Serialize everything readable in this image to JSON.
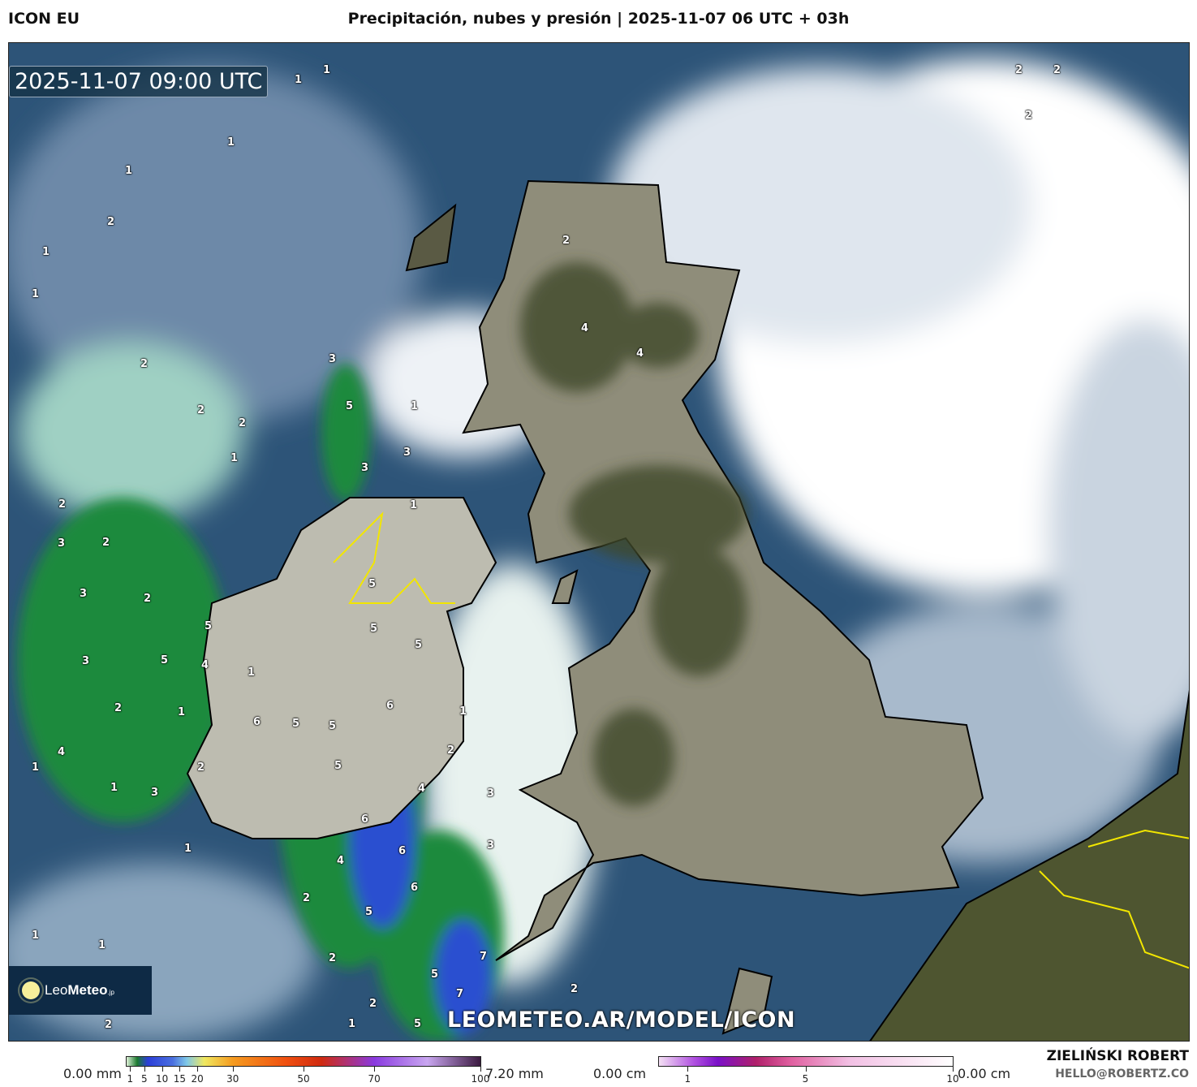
{
  "header": {
    "model": "ICON EU",
    "title": "Precipitación, nubes y presión | 2025-11-07 06 UTC + 03h"
  },
  "map": {
    "valid_time": "2025-11-07 09:00 UTC",
    "logo": {
      "name_light": "Leo",
      "name_bold": "Meteo",
      "suffix": ".jp"
    },
    "watermark": "LEOMETEO.AR/MODEL/ICON",
    "pressure_labels": [
      "1",
      "1",
      "1",
      "1",
      "2",
      "1",
      "1",
      "2",
      "2",
      "2",
      "1",
      "3",
      "5",
      "1",
      "3",
      "3",
      "1",
      "2",
      "2",
      "3",
      "2",
      "4",
      "4",
      "3",
      "2",
      "5",
      "5",
      "4",
      "1",
      "3",
      "1",
      "2",
      "1",
      "2",
      "1",
      "5",
      "5",
      "6",
      "5",
      "5",
      "6",
      "5",
      "4",
      "5",
      "1",
      "6",
      "2",
      "3",
      "1",
      "6",
      "4",
      "6",
      "3",
      "2",
      "1",
      "1",
      "5",
      "2",
      "7",
      "2",
      "5",
      "7",
      "2",
      "1",
      "5",
      "2",
      "2",
      "2",
      "2",
      "4",
      "3",
      "2"
    ],
    "colors": {
      "ocean": "#2d5478",
      "land_uk": "#9c9a88",
      "forest": "#3f4a2a",
      "cloud": "#ffffff",
      "precip_light": "#8fd9b8",
      "precip_mid": "#1f8a3c",
      "precip_heavy": "#2a4fd0",
      "border_yellow": "#f2e600"
    }
  },
  "legend": {
    "rain": {
      "min_label": "0.00 mm",
      "max_label": "7.20 mm",
      "ticks": [
        "1",
        "5",
        "10",
        "15",
        "20",
        "30",
        "50",
        "70",
        "100"
      ]
    },
    "snow": {
      "min_label": "0.00 cm",
      "max_label": "0.00 cm",
      "ticks": [
        "1",
        "5",
        "10"
      ]
    }
  },
  "credits": {
    "author": "ZIELIŃSKI ROBERT",
    "email": "HELLO@ROBERTZ.CO"
  }
}
